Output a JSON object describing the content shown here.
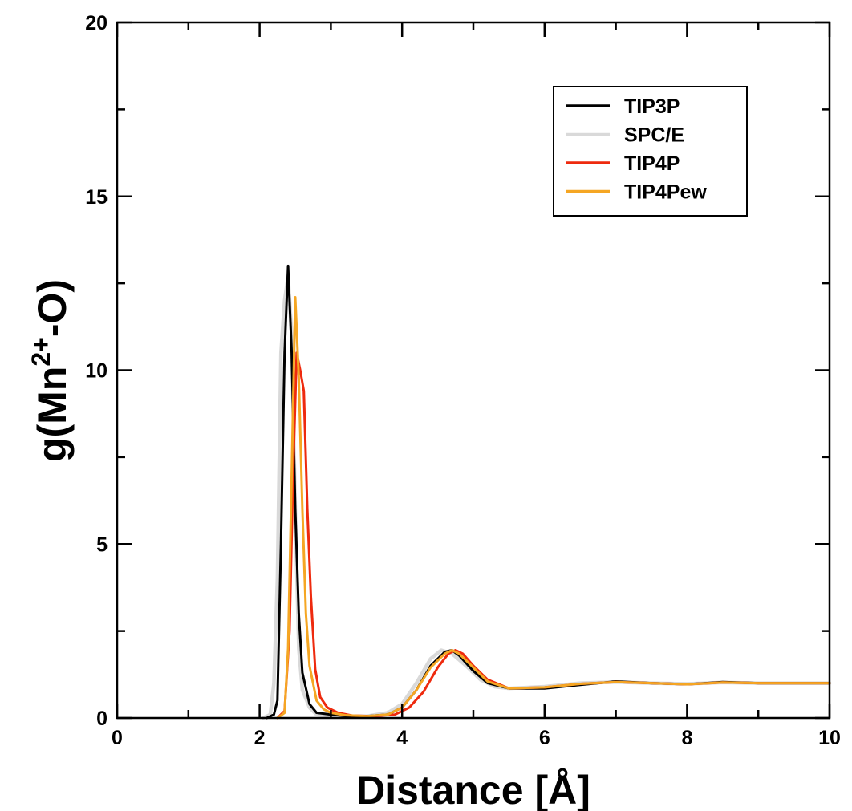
{
  "chart_data": {
    "type": "line",
    "title": "",
    "xlabel": "Distance [Å]",
    "ylabel": {
      "prefix": "g(Mn",
      "superscript": "2+",
      "suffix": "-O)"
    },
    "xlim": [
      0,
      10
    ],
    "ylim": [
      0,
      20
    ],
    "xticks": [
      0,
      2,
      4,
      6,
      8,
      10
    ],
    "yticks": [
      0,
      5,
      10,
      15,
      20
    ],
    "grid": false,
    "legend_position": "top-right",
    "series": [
      {
        "name": "TIP3P",
        "color": "#000000",
        "points": [
          [
            2.1,
            0
          ],
          [
            2.2,
            0.1
          ],
          [
            2.25,
            0.5
          ],
          [
            2.3,
            5
          ],
          [
            2.35,
            10.5
          ],
          [
            2.4,
            13.0
          ],
          [
            2.45,
            10.5
          ],
          [
            2.5,
            6
          ],
          [
            2.55,
            3
          ],
          [
            2.6,
            1.3
          ],
          [
            2.7,
            0.4
          ],
          [
            2.8,
            0.15
          ],
          [
            3.0,
            0.1
          ],
          [
            3.2,
            0.06
          ],
          [
            3.5,
            0.05
          ],
          [
            3.8,
            0.1
          ],
          [
            4.0,
            0.3
          ],
          [
            4.2,
            0.8
          ],
          [
            4.4,
            1.5
          ],
          [
            4.6,
            1.9
          ],
          [
            4.7,
            1.95
          ],
          [
            4.8,
            1.8
          ],
          [
            5.0,
            1.35
          ],
          [
            5.2,
            1.0
          ],
          [
            5.5,
            0.85
          ],
          [
            6.0,
            0.85
          ],
          [
            6.5,
            0.95
          ],
          [
            7.0,
            1.05
          ],
          [
            7.5,
            1.0
          ],
          [
            8.0,
            0.97
          ],
          [
            8.5,
            1.03
          ],
          [
            9.0,
            1.0
          ],
          [
            9.5,
            1.0
          ],
          [
            10.0,
            1.0
          ]
        ]
      },
      {
        "name": "SPC/E",
        "color": "#d9d9d9",
        "points": [
          [
            2.05,
            0
          ],
          [
            2.15,
            0.1
          ],
          [
            2.2,
            1
          ],
          [
            2.25,
            4
          ],
          [
            2.3,
            10.5
          ],
          [
            2.35,
            12.0
          ],
          [
            2.4,
            12.7
          ],
          [
            2.45,
            11
          ],
          [
            2.5,
            6
          ],
          [
            2.55,
            2
          ],
          [
            2.6,
            0.8
          ],
          [
            2.7,
            0.3
          ],
          [
            2.8,
            0.1
          ],
          [
            3.0,
            0.06
          ],
          [
            3.2,
            0.05
          ],
          [
            3.5,
            0.05
          ],
          [
            3.8,
            0.15
          ],
          [
            4.0,
            0.4
          ],
          [
            4.2,
            1.0
          ],
          [
            4.4,
            1.7
          ],
          [
            4.55,
            1.95
          ],
          [
            4.7,
            1.85
          ],
          [
            4.9,
            1.5
          ],
          [
            5.1,
            1.1
          ],
          [
            5.3,
            0.9
          ],
          [
            5.5,
            0.85
          ],
          [
            6.0,
            0.9
          ],
          [
            6.5,
            1.0
          ],
          [
            7.0,
            1.03
          ],
          [
            7.5,
            1.0
          ],
          [
            8.0,
            0.98
          ],
          [
            8.5,
            1.02
          ],
          [
            9.0,
            1.0
          ],
          [
            10.0,
            1.0
          ]
        ]
      },
      {
        "name": "TIP4P",
        "color": "#ee2a0e",
        "points": [
          [
            2.25,
            0
          ],
          [
            2.35,
            0.2
          ],
          [
            2.42,
            2.5
          ],
          [
            2.47,
            7
          ],
          [
            2.52,
            10.5
          ],
          [
            2.57,
            10.0
          ],
          [
            2.62,
            9.4
          ],
          [
            2.67,
            6
          ],
          [
            2.72,
            3.5
          ],
          [
            2.78,
            1.4
          ],
          [
            2.85,
            0.6
          ],
          [
            2.95,
            0.3
          ],
          [
            3.1,
            0.15
          ],
          [
            3.3,
            0.07
          ],
          [
            3.6,
            0.05
          ],
          [
            3.9,
            0.1
          ],
          [
            4.1,
            0.3
          ],
          [
            4.3,
            0.75
          ],
          [
            4.5,
            1.45
          ],
          [
            4.65,
            1.85
          ],
          [
            4.75,
            1.95
          ],
          [
            4.85,
            1.85
          ],
          [
            5.0,
            1.5
          ],
          [
            5.2,
            1.1
          ],
          [
            5.5,
            0.85
          ],
          [
            6.0,
            0.88
          ],
          [
            6.5,
            0.98
          ],
          [
            7.0,
            1.03
          ],
          [
            7.5,
            1.0
          ],
          [
            8.0,
            0.97
          ],
          [
            8.5,
            1.02
          ],
          [
            9.0,
            1.0
          ],
          [
            10.0,
            1.0
          ]
        ]
      },
      {
        "name": "TIP4Pew",
        "color": "#f5a623",
        "points": [
          [
            2.25,
            0
          ],
          [
            2.35,
            0.15
          ],
          [
            2.4,
            2
          ],
          [
            2.45,
            7
          ],
          [
            2.5,
            12.1
          ],
          [
            2.55,
            9.8
          ],
          [
            2.6,
            6
          ],
          [
            2.65,
            3
          ],
          [
            2.7,
            1.5
          ],
          [
            2.8,
            0.5
          ],
          [
            2.9,
            0.25
          ],
          [
            3.0,
            0.15
          ],
          [
            3.2,
            0.08
          ],
          [
            3.5,
            0.05
          ],
          [
            3.8,
            0.1
          ],
          [
            4.0,
            0.3
          ],
          [
            4.2,
            0.8
          ],
          [
            4.4,
            1.45
          ],
          [
            4.6,
            1.85
          ],
          [
            4.7,
            1.95
          ],
          [
            4.8,
            1.85
          ],
          [
            5.0,
            1.45
          ],
          [
            5.2,
            1.05
          ],
          [
            5.5,
            0.85
          ],
          [
            6.0,
            0.88
          ],
          [
            6.5,
            0.98
          ],
          [
            7.0,
            1.03
          ],
          [
            7.5,
            1.0
          ],
          [
            8.0,
            0.97
          ],
          [
            8.5,
            1.02
          ],
          [
            9.0,
            1.0
          ],
          [
            10.0,
            1.0
          ]
        ]
      }
    ]
  }
}
